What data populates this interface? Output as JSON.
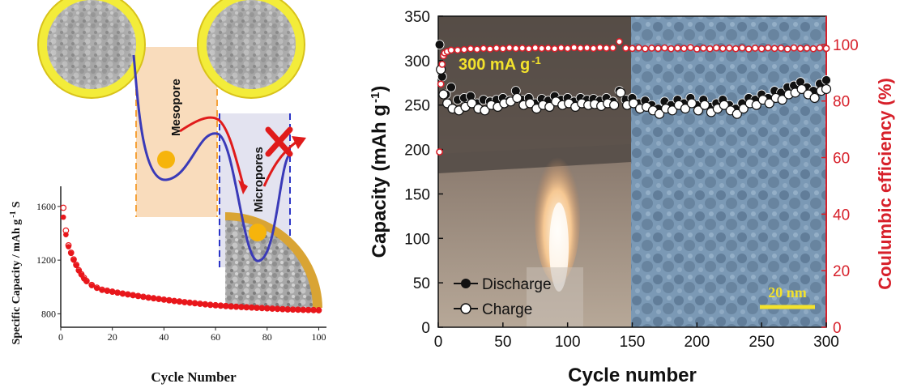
{
  "chart_data": [
    {
      "type": "scatter",
      "title": "",
      "xlabel": "Cycle Number",
      "ylabel": "Specific Capacity / mAh g",
      "ylabel_superscript": "-1",
      "ylabel_suffix": "S",
      "xlim": [
        0,
        103
      ],
      "ylim": [
        700,
        1750
      ],
      "xticks": [
        0,
        20,
        40,
        60,
        80,
        100
      ],
      "yticks": [
        800,
        1200,
        1600
      ],
      "grid": false,
      "color": "#e8161b",
      "series": [
        {
          "marker": "filled-circle",
          "x": [
            1,
            2,
            3,
            4,
            5,
            6,
            7,
            8,
            9,
            10,
            12,
            14,
            16,
            18,
            20,
            22,
            24,
            26,
            28,
            30,
            32,
            34,
            36,
            38,
            40,
            42,
            44,
            46,
            48,
            50,
            52,
            54,
            56,
            58,
            60,
            62,
            64,
            66,
            68,
            70,
            72,
            74,
            76,
            78,
            80,
            82,
            84,
            86,
            88,
            90,
            92,
            94,
            96,
            98,
            100
          ],
          "y": [
            1520,
            1390,
            1300,
            1250,
            1200,
            1160,
            1120,
            1090,
            1060,
            1040,
            1010,
            990,
            975,
            968,
            962,
            955,
            948,
            942,
            936,
            930,
            924,
            918,
            913,
            908,
            903,
            898,
            893,
            889,
            884,
            880,
            876,
            872,
            868,
            864,
            861,
            858,
            855,
            852,
            850,
            848,
            846,
            844,
            842,
            840,
            838,
            836,
            834,
            832,
            830,
            829,
            828,
            827,
            826,
            825,
            824
          ]
        },
        {
          "marker": "open-circle",
          "x": [
            1,
            2,
            3,
            4,
            5,
            6,
            7,
            8,
            9,
            10,
            12,
            14,
            16,
            18,
            20,
            22,
            24,
            26,
            28,
            30,
            32,
            34,
            36,
            38,
            40,
            42,
            44,
            46,
            48,
            50,
            52,
            54,
            56,
            58,
            60,
            62,
            64,
            66,
            68,
            70,
            72,
            74,
            76,
            78,
            80,
            82,
            84,
            86,
            88,
            90,
            92,
            94,
            96,
            98,
            100
          ],
          "y": [
            1590,
            1420,
            1310,
            1255,
            1205,
            1165,
            1125,
            1095,
            1068,
            1045,
            1015,
            995,
            980,
            972,
            965,
            958,
            951,
            945,
            939,
            933,
            927,
            921,
            916,
            911,
            906,
            901,
            896,
            892,
            887,
            883,
            879,
            875,
            871,
            867,
            864,
            861,
            858,
            855,
            853,
            851,
            849,
            847,
            845,
            843,
            841,
            839,
            837,
            835,
            833,
            832,
            831,
            830,
            829,
            828,
            827
          ]
        }
      ]
    },
    {
      "type": "scatter",
      "title": "",
      "xlabel": "Cycle number",
      "ylabel": "Capacity (mAh g",
      "ylabel_superscript": "-1",
      "ylabel_suffix": ")",
      "y2label": "Coulumbic efficiency (%)",
      "xlim": [
        0,
        300
      ],
      "ylim": [
        0,
        350
      ],
      "y2lim": [
        0,
        110
      ],
      "xticks": [
        0,
        50,
        100,
        150,
        200,
        250,
        300
      ],
      "yticks": [
        0,
        50,
        100,
        150,
        200,
        250,
        300,
        350
      ],
      "y2ticks": [
        0,
        20,
        40,
        60,
        80,
        100
      ],
      "grid": false,
      "annotation": "300 mA g",
      "annotation_superscript": "-1",
      "scale_bar_label": "20 nm",
      "legend_placement": "bottom-left",
      "series": [
        {
          "name": "Discharge",
          "marker": "filled-circle",
          "color": "#111111",
          "x": [
            1,
            3,
            6,
            10,
            15,
            20,
            25,
            30,
            35,
            40,
            45,
            50,
            55,
            60,
            65,
            70,
            75,
            80,
            85,
            90,
            95,
            100,
            105,
            110,
            115,
            120,
            125,
            130,
            135,
            140,
            145,
            150,
            155,
            160,
            165,
            170,
            175,
            180,
            185,
            190,
            195,
            200,
            205,
            210,
            215,
            220,
            225,
            230,
            235,
            240,
            245,
            250,
            255,
            260,
            265,
            270,
            275,
            280,
            285,
            290,
            295,
            300
          ],
          "y": [
            318,
            282,
            262,
            270,
            256,
            258,
            260,
            252,
            256,
            254,
            256,
            258,
            255,
            266,
            256,
            258,
            252,
            257,
            255,
            260,
            256,
            258,
            254,
            258,
            256,
            257,
            255,
            258,
            254,
            266,
            256,
            258,
            252,
            255,
            250,
            246,
            254,
            250,
            256,
            252,
            258,
            250,
            256,
            248,
            252,
            256,
            250,
            246,
            252,
            258,
            256,
            262,
            258,
            266,
            264,
            270,
            272,
            276,
            270,
            266,
            274,
            278
          ]
        },
        {
          "name": "Charge",
          "marker": "open-circle",
          "color": "#111111",
          "x": [
            2,
            4,
            7,
            11,
            16,
            21,
            26,
            31,
            36,
            41,
            46,
            51,
            56,
            61,
            66,
            71,
            76,
            81,
            86,
            91,
            96,
            101,
            106,
            111,
            116,
            121,
            126,
            131,
            136,
            141,
            146,
            151,
            156,
            161,
            166,
            171,
            176,
            181,
            186,
            191,
            196,
            201,
            206,
            211,
            216,
            221,
            226,
            231,
            236,
            241,
            246,
            251,
            256,
            261,
            266,
            271,
            276,
            281,
            286,
            291,
            296,
            300
          ],
          "y": [
            290,
            262,
            252,
            246,
            244,
            248,
            252,
            246,
            244,
            250,
            248,
            252,
            254,
            258,
            250,
            252,
            246,
            250,
            248,
            254,
            250,
            252,
            248,
            252,
            250,
            251,
            249,
            252,
            250,
            264,
            250,
            252,
            246,
            248,
            244,
            240,
            246,
            244,
            250,
            246,
            252,
            244,
            250,
            242,
            246,
            250,
            244,
            240,
            246,
            252,
            250,
            256,
            252,
            258,
            256,
            262,
            264,
            268,
            262,
            258,
            266,
            268
          ]
        },
        {
          "name": "Coulumbic efficiency",
          "marker": "open-circle",
          "color": "#d7202a",
          "axis": "y2",
          "x": [
            1,
            2,
            3,
            4,
            5,
            7,
            10,
            15,
            20,
            25,
            30,
            35,
            40,
            45,
            50,
            55,
            60,
            65,
            70,
            75,
            80,
            85,
            90,
            95,
            100,
            105,
            110,
            115,
            120,
            125,
            130,
            135,
            140,
            145,
            150,
            155,
            160,
            165,
            170,
            175,
            180,
            185,
            190,
            195,
            200,
            205,
            210,
            215,
            220,
            225,
            230,
            235,
            240,
            245,
            250,
            255,
            260,
            265,
            270,
            275,
            280,
            285,
            290,
            295,
            300
          ],
          "y": [
            62,
            86,
            93,
            96,
            97,
            97.5,
            98,
            98,
            98.2,
            98.5,
            98.3,
            98.6,
            98.4,
            98.7,
            98.5,
            98.8,
            98.6,
            98.7,
            98.5,
            98.8,
            98.6,
            98.7,
            98.5,
            98.8,
            98.6,
            98.9,
            98.7,
            98.8,
            98.6,
            98.9,
            98.7,
            98.8,
            101,
            98.7,
            98.6,
            98.8,
            98.5,
            98.7,
            98.6,
            98.8,
            98.5,
            98.7,
            98.6,
            98.9,
            98.4,
            98.7,
            98.5,
            98.8,
            98.6,
            98.7,
            98.5,
            98.8,
            98.4,
            98.7,
            98.5,
            98.8,
            98.6,
            98.7,
            98.4,
            98.8,
            98.6,
            98.7,
            98.5,
            98.8,
            98.6
          ]
        }
      ]
    }
  ],
  "schematic": {
    "mesopore_label": "Mesopore",
    "micropores_label": "Micropores"
  }
}
